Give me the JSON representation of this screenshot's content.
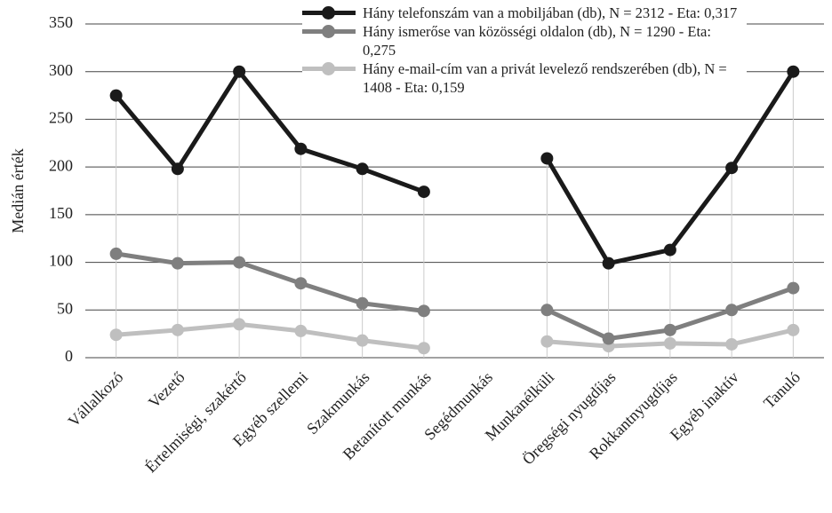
{
  "chart_data": {
    "type": "line",
    "ylabel": "Medián érték",
    "categories": [
      "Vállalkozó",
      "Vezető",
      "Értelmiségi, szakértő",
      "Egyéb szellemi",
      "Szakmunkás",
      "Betanított munkás",
      "Segédmunkás",
      "Munkanélküli",
      "Öregségi nyugdíjas",
      "Rokkantnyugdíjas",
      "Egyéb inaktív",
      "Tanuló"
    ],
    "series": [
      {
        "name": "Hány telefonszám van a mobiljában (db), N = 2312 - Eta: 0,317",
        "color": "#1a1a1a",
        "values": [
          275,
          198,
          300,
          219,
          198,
          174,
          null,
          209,
          99,
          113,
          199,
          300
        ]
      },
      {
        "name": "Hány ismerőse van közösségi oldalon (db), N = 1290 - Eta: 0,275",
        "color": "#7f7f7f",
        "values": [
          109,
          99,
          100,
          78,
          57,
          49,
          null,
          50,
          20,
          29,
          50,
          73
        ]
      },
      {
        "name": "Hány e-mail-cím van a privát levelező rendszerében (db), N = 1408 - Eta: 0,159",
        "color": "#bfbfbf",
        "values": [
          24,
          29,
          35,
          28,
          18,
          10,
          null,
          17,
          12,
          15,
          14,
          29
        ]
      }
    ],
    "ylim": [
      0,
      350
    ],
    "yticks": [
      0,
      50,
      100,
      150,
      200,
      250,
      300,
      350
    ],
    "grid": true
  }
}
